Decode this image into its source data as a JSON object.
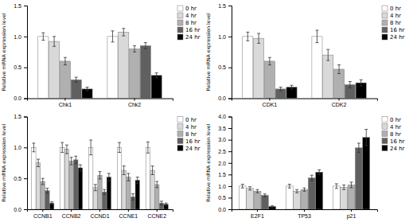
{
  "chart_data": [
    {
      "type": "bar",
      "ylabel": "Relative mRNA expression level",
      "categories": [
        "Chk1",
        "Chk2"
      ],
      "series": [
        {
          "name": "0 hr",
          "color": "#ffffff",
          "values": [
            1.0,
            1.0
          ],
          "errors": [
            0.06,
            0.09
          ]
        },
        {
          "name": "4 hr",
          "color": "#d9d9d9",
          "values": [
            0.92,
            1.07
          ],
          "errors": [
            0.08,
            0.06
          ]
        },
        {
          "name": "8 hr",
          "color": "#b0b0b0",
          "values": [
            0.6,
            0.8
          ],
          "errors": [
            0.06,
            0.05
          ]
        },
        {
          "name": "16 hr",
          "color": "#606060",
          "values": [
            0.3,
            0.85
          ],
          "errors": [
            0.04,
            0.05
          ]
        },
        {
          "name": "24 hr",
          "color": "#000000",
          "values": [
            0.15,
            0.37
          ],
          "errors": [
            0.03,
            0.04
          ]
        }
      ],
      "ylim": [
        0,
        1.5
      ],
      "yticks": [
        {
          "value": 0,
          "label": "0.0"
        },
        0.5,
        {
          "value": 1.0,
          "label": "1.0"
        },
        1.5
      ],
      "legend": "upper right"
    },
    {
      "type": "bar",
      "ylabel": "Relative mRNA expression level",
      "categories": [
        "CDK1",
        "CDK2"
      ],
      "series": [
        {
          "name": "0 hr",
          "color": "#ffffff",
          "values": [
            1.0,
            1.0
          ],
          "errors": [
            0.07,
            0.1
          ]
        },
        {
          "name": "4 hr",
          "color": "#d9d9d9",
          "values": [
            0.97,
            0.7
          ],
          "errors": [
            0.08,
            0.09
          ]
        },
        {
          "name": "8 hr",
          "color": "#b0b0b0",
          "values": [
            0.6,
            0.47
          ],
          "errors": [
            0.06,
            0.07
          ]
        },
        {
          "name": "16 hr",
          "color": "#606060",
          "values": [
            0.15,
            0.22
          ],
          "errors": [
            0.03,
            0.05
          ]
        },
        {
          "name": "24 hr",
          "color": "#000000",
          "values": [
            0.18,
            0.25
          ],
          "errors": [
            0.03,
            0.05
          ]
        }
      ],
      "ylim": [
        0,
        1.5
      ],
      "yticks": [
        {
          "value": 0,
          "label": "0.0"
        },
        0.5,
        {
          "value": 1.0,
          "label": "1.0"
        },
        1.5
      ],
      "legend": "upper right"
    },
    {
      "type": "bar",
      "ylabel": "Relative mRNA expression level",
      "categories": [
        "CCNB1",
        "CCNB2",
        "CCND1",
        "CCNE1",
        "CCNE2"
      ],
      "series": [
        {
          "name": "0 hr",
          "color": "#ffffff",
          "values": [
            1.0,
            1.0,
            1.0,
            1.0,
            1.0
          ],
          "errors": [
            0.07,
            0.08,
            0.12,
            0.08,
            0.09
          ]
        },
        {
          "name": "4 hr",
          "color": "#d9d9d9",
          "values": [
            0.75,
            0.97,
            0.35,
            0.63,
            0.63
          ],
          "errors": [
            0.06,
            0.07,
            0.05,
            0.07,
            0.07
          ]
        },
        {
          "name": "8 hr",
          "color": "#b0b0b0",
          "values": [
            0.45,
            0.78,
            0.55,
            0.52,
            0.4
          ],
          "errors": [
            0.05,
            0.06,
            0.06,
            0.06,
            0.05
          ]
        },
        {
          "name": "16 hr",
          "color": "#606060",
          "values": [
            0.3,
            0.8,
            0.28,
            0.2,
            0.1
          ],
          "errors": [
            0.04,
            0.06,
            0.04,
            0.05,
            0.03
          ]
        },
        {
          "name": "24 hr",
          "color": "#000000",
          "values": [
            0.1,
            0.67,
            0.52,
            0.47,
            0.08
          ],
          "errors": [
            0.02,
            0.05,
            0.06,
            0.05,
            0.02
          ]
        }
      ],
      "ylim": [
        0,
        1.5
      ],
      "yticks": [
        {
          "value": 0,
          "label": "0.0"
        },
        0.5,
        {
          "value": 1.0,
          "label": "1.0"
        },
        1.5
      ],
      "legend": "upper right"
    },
    {
      "type": "bar",
      "ylabel": "Relative mRNA expression level",
      "categories": [
        "E2F1",
        "TP53",
        "p21"
      ],
      "series": [
        {
          "name": "0 hr",
          "color": "#ffffff",
          "values": [
            1.0,
            1.0,
            1.0
          ],
          "errors": [
            0.08,
            0.08,
            0.1
          ]
        },
        {
          "name": "4 hr",
          "color": "#d9d9d9",
          "values": [
            0.9,
            0.78,
            0.95
          ],
          "errors": [
            0.07,
            0.07,
            0.1
          ]
        },
        {
          "name": "8 hr",
          "color": "#b0b0b0",
          "values": [
            0.78,
            0.85,
            1.05
          ],
          "errors": [
            0.07,
            0.07,
            0.12
          ]
        },
        {
          "name": "16 hr",
          "color": "#606060",
          "values": [
            0.6,
            1.35,
            2.65
          ],
          "errors": [
            0.06,
            0.12,
            0.2
          ]
        },
        {
          "name": "24 hr",
          "color": "#000000",
          "values": [
            0.12,
            1.6,
            3.1
          ],
          "errors": [
            0.03,
            0.1,
            0.35
          ]
        }
      ],
      "ylim": [
        0,
        4.0
      ],
      "yticks": [
        {
          "value": 0,
          "label": "0.0"
        },
        0.5,
        {
          "value": 1.0,
          "label": "1.0"
        },
        1.5,
        {
          "value": 2.0,
          "label": "2.0"
        },
        2.5,
        {
          "value": 3.0,
          "label": "3.0"
        },
        3.5,
        {
          "value": 4.0,
          "label": "4.0"
        }
      ],
      "legend": "upper right"
    }
  ]
}
